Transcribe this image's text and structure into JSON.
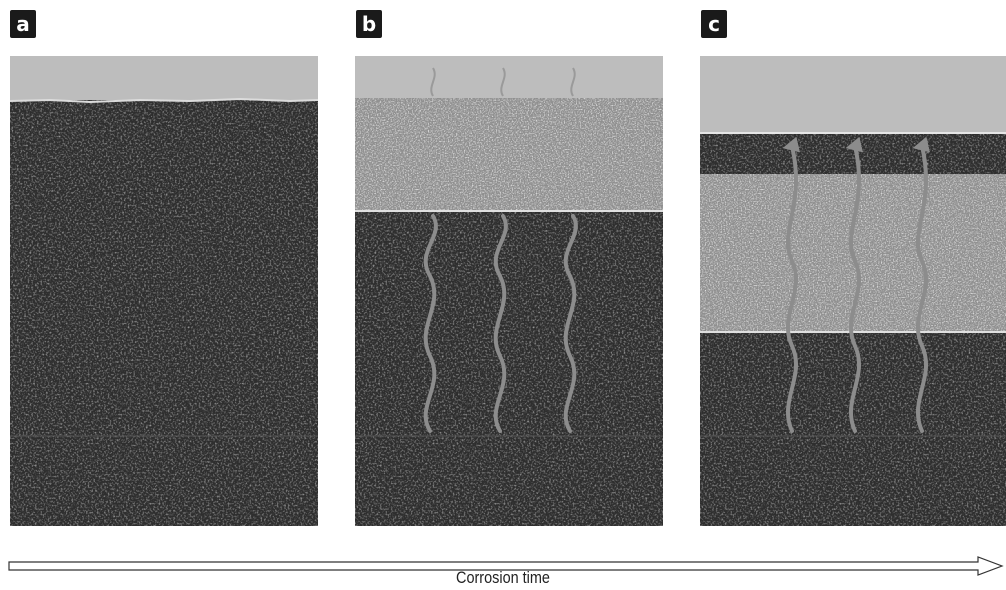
{
  "panels": [
    {
      "label": "a"
    },
    {
      "label": "b"
    },
    {
      "label": "c"
    }
  ],
  "arrow": {
    "label": "Corrosion time"
  },
  "colors": {
    "top_layer": "#bdbdbd",
    "bulk_dark": "#2e2e2e",
    "corroded_light": "#8f8f8f",
    "wavy_arrow": "#8c8c8c",
    "badge": "#1a1a1a"
  }
}
